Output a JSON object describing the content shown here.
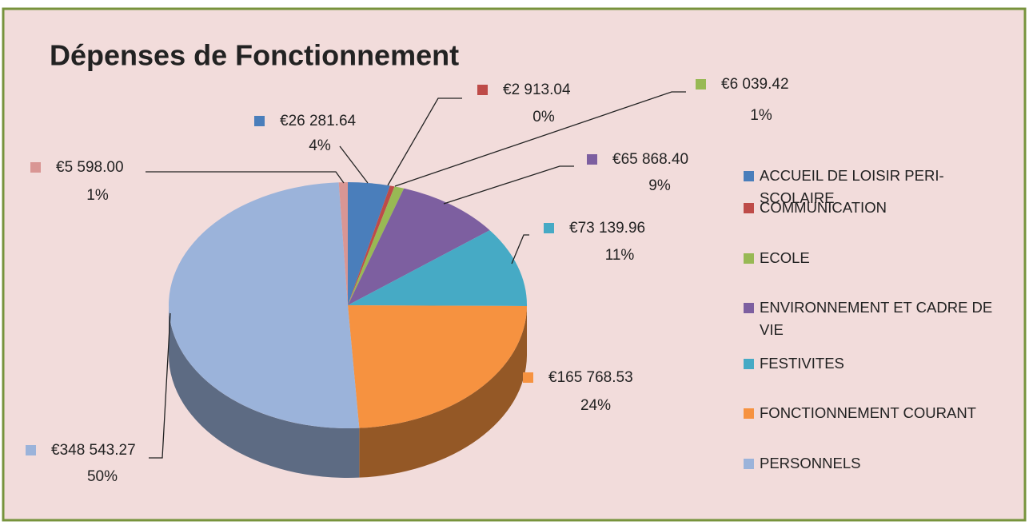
{
  "chart_data": {
    "type": "pie",
    "title": "Dépenses de Fonctionnement",
    "categories": [
      "ACCUEIL DE LOISIR PERI-SCOLAIRE",
      "COMMUNICATION",
      "ECOLE",
      "ENVIRONNEMENT ET CADRE DE VIE",
      "FESTIVITES",
      "FONCTIONNEMENT COURANT",
      "PERSONNELS",
      null
    ],
    "values": [
      26281.64,
      2913.04,
      6039.42,
      65868.4,
      73139.96,
      165768.53,
      348543.27,
      5598.0
    ],
    "value_labels": [
      "€26 281.64",
      "€2 913.04",
      "€6 039.42",
      "€65 868.40",
      "€73 139.96",
      "€165 768.53",
      "€348 543.27",
      "€5 598.00"
    ],
    "percent_labels": [
      "4%",
      "0%",
      "1%",
      "9%",
      "11%",
      "24%",
      "50%",
      "1%"
    ],
    "colors": [
      "#4a7ebb",
      "#be4b48",
      "#98b954",
      "#7d5fa0",
      "#46aac5",
      "#f69240",
      "#9bb3da",
      "#d99694"
    ],
    "legend": "right"
  }
}
